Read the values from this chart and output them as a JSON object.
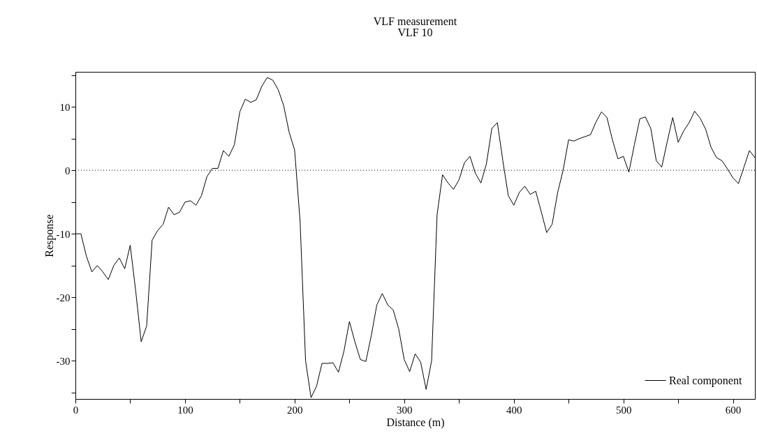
{
  "chart_data": {
    "type": "line",
    "title": "VLF measurement",
    "subtitle": "VLF  10",
    "xlabel": "Distance (m)",
    "ylabel": "Response",
    "x": [
      0,
      5,
      10,
      15,
      20,
      25,
      30,
      35,
      40,
      45,
      50,
      55,
      60,
      65,
      70,
      75,
      80,
      85,
      90,
      95,
      100,
      105,
      110,
      115,
      120,
      125,
      130,
      135,
      140,
      145,
      150,
      155,
      160,
      165,
      170,
      175,
      180,
      185,
      190,
      195,
      200,
      205,
      210,
      215,
      220,
      225,
      230,
      235,
      240,
      245,
      250,
      255,
      260,
      265,
      270,
      275,
      280,
      285,
      290,
      295,
      300,
      305,
      310,
      315,
      320,
      325,
      330,
      335,
      340,
      345,
      350,
      355,
      360,
      365,
      370,
      375,
      380,
      385,
      390,
      395,
      400,
      405,
      410,
      415,
      420,
      425,
      430,
      435,
      440,
      445,
      450,
      455,
      460,
      465,
      470,
      475,
      480,
      485,
      490,
      495,
      500,
      505,
      510,
      515,
      520,
      525,
      530,
      535,
      540,
      545,
      550,
      555,
      560,
      565,
      570,
      575,
      580,
      585,
      590,
      595,
      600,
      605,
      610,
      615,
      620
    ],
    "series": [
      {
        "name": "Real component",
        "color": "#000000",
        "values": [
          -10,
          -10,
          -13.5,
          -16,
          -15,
          -16,
          -17.2,
          -15,
          -13.8,
          -15.5,
          -11.8,
          -19,
          -27,
          -24.5,
          -11,
          -9.5,
          -8.5,
          -5.8,
          -7,
          -6.6,
          -5,
          -4.8,
          -5.5,
          -4,
          -1,
          0.3,
          0.3,
          3.1,
          2.2,
          4,
          9.2,
          11.2,
          10.7,
          11.1,
          13.2,
          14.6,
          14.2,
          12.7,
          10.2,
          6,
          3.2,
          -8,
          -30,
          -35.8,
          -34,
          -30.4,
          -30.4,
          -30.3,
          -31.8,
          -28.5,
          -23.8,
          -27,
          -29.8,
          -30.1,
          -26,
          -21.2,
          -19.4,
          -21.2,
          -22,
          -25,
          -29.8,
          -31.7,
          -28.9,
          -30.2,
          -34.5,
          -30,
          -7,
          -0.7,
          -2,
          -3,
          -1.5,
          1.2,
          2.2,
          -0.5,
          -2,
          1,
          6.6,
          7.5,
          1.5,
          -4,
          -5.5,
          -3.5,
          -2.5,
          -3.8,
          -3.3,
          -6.5,
          -9.8,
          -8.5,
          -3.5,
          0,
          4.8,
          4.6,
          5,
          5.3,
          5.6,
          7.6,
          9.2,
          8.3,
          4.8,
          1.8,
          2.2,
          -0.3,
          4,
          8.1,
          8.4,
          6.6,
          1.5,
          0.5,
          4.5,
          8.3,
          4.4,
          6.2,
          7.5,
          9.3,
          8.2,
          6.5,
          3.6,
          2,
          1.5,
          0.2,
          -1.2,
          -2.1,
          0.5,
          3.1,
          2
        ]
      }
    ],
    "xlim": [
      0,
      620
    ],
    "xticks": [
      0,
      {
        "value": 50,
        "label": null
      },
      100,
      {
        "value": 150,
        "label": null
      },
      200,
      {
        "value": 250,
        "label": null
      },
      300,
      {
        "value": 350,
        "label": null
      },
      400,
      {
        "value": 450,
        "label": null
      },
      500,
      {
        "value": 550,
        "label": null
      },
      600
    ],
    "ylim": [
      -36,
      15.5
    ],
    "yticks": [
      {
        "value": -35,
        "label": null
      },
      -30,
      {
        "value": -25,
        "label": null
      },
      -20,
      {
        "value": -15,
        "label": null
      },
      -10,
      {
        "value": -5,
        "label": null
      },
      0,
      {
        "value": 5,
        "label": null
      },
      10,
      {
        "value": 15,
        "label": null
      }
    ],
    "ref_lines": [
      {
        "axis": "y",
        "value": 0,
        "line_style": "dotted",
        "color": "#000000"
      }
    ],
    "legend": "bottom right",
    "grid": false,
    "marker": "none",
    "line_style": "solid"
  }
}
